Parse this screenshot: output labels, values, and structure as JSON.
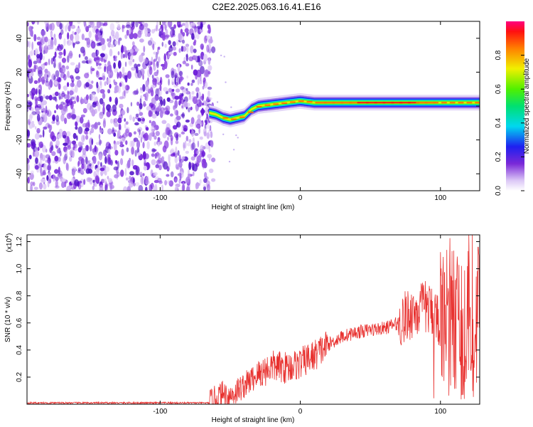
{
  "title": "C2E2.2025.063.16.41.E16",
  "chart_data": [
    {
      "type": "heatmap",
      "xlabel": "Height of straight line (km)",
      "ylabel": "Frequency (Hz)",
      "xlim": [
        -195,
        128
      ],
      "ylim": [
        -50,
        50
      ],
      "xticks": [
        -100,
        0,
        100
      ],
      "yticks": [
        -40,
        -20,
        0,
        20,
        40
      ],
      "colorbar": {
        "label": "Normalized spectral amplitude",
        "range": [
          0,
          1
        ],
        "ticks": [
          "0.0",
          "0.2",
          "0.4",
          "0.6",
          "0.8"
        ]
      },
      "ridge": {
        "x": [
          -65,
          -60,
          -55,
          -50,
          -45,
          -40,
          -35,
          -30,
          -20,
          -10,
          0,
          10,
          20,
          40,
          60,
          80,
          100,
          128
        ],
        "y": [
          -4,
          -5,
          -7,
          -8,
          -7,
          -6,
          -2,
          0,
          1,
          2,
          3,
          2,
          2,
          2,
          2,
          2,
          2,
          2
        ]
      },
      "noise_region": [
        -195,
        -62
      ],
      "grid": false
    },
    {
      "type": "line",
      "xlabel": "Height of straight line (km)",
      "ylabel": "SNR (10 * v/v)",
      "yscale_label": "(x10",
      "yscale_exp": "4",
      "xlim": [
        -195,
        128
      ],
      "ylim": [
        0,
        1.25
      ],
      "xticks": [
        -100,
        0,
        100
      ],
      "yticks": [
        "0.2",
        "0.4",
        "0.6",
        "0.8",
        "1.0",
        "1.2"
      ],
      "series": [
        {
          "color": "#e8312f",
          "envelope_x": [
            -195,
            -65,
            -55,
            -50,
            -40,
            -30,
            -20,
            -10,
            0,
            10,
            20,
            30,
            40,
            50,
            60,
            70,
            80,
            90,
            100,
            110,
            120,
            128
          ],
          "envelope_y": [
            0.01,
            0.01,
            0.08,
            0.06,
            0.14,
            0.22,
            0.28,
            0.27,
            0.3,
            0.36,
            0.44,
            0.5,
            0.53,
            0.55,
            0.56,
            0.6,
            0.68,
            0.72,
            0.62,
            0.6,
            0.55,
            0.65
          ]
        }
      ],
      "grid": false
    }
  ]
}
